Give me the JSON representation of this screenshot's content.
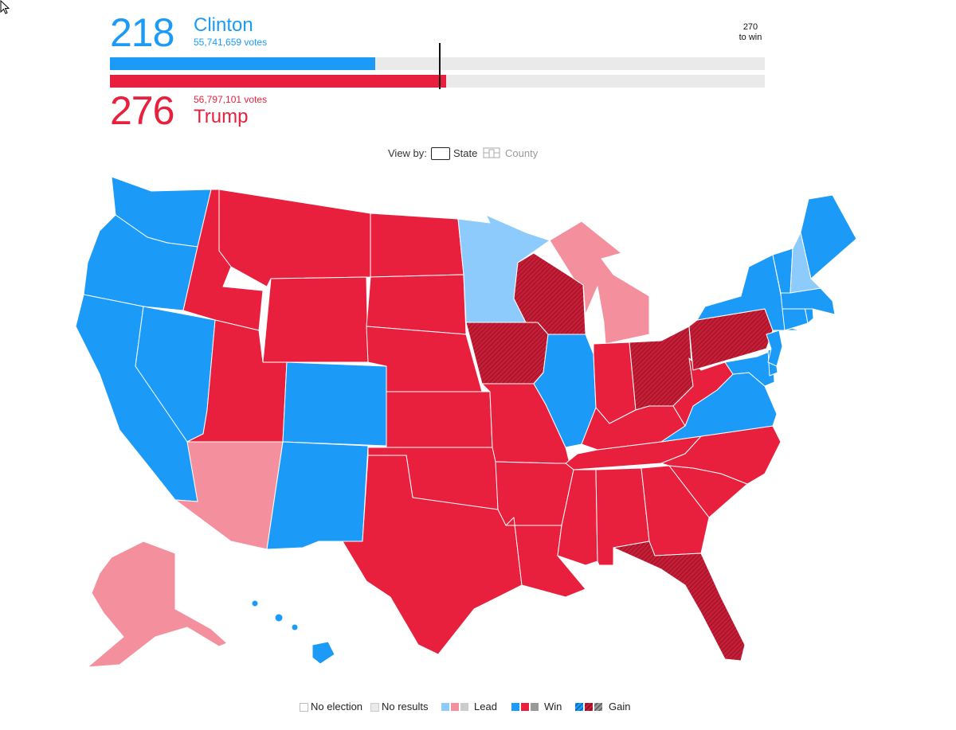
{
  "scoreboard": {
    "dem": {
      "count": "218",
      "name": "Clinton",
      "votes": "55,741,659 votes"
    },
    "rep": {
      "count": "276",
      "name": "Trump",
      "votes": "56,797,101 votes"
    },
    "threshold_line1": "270",
    "threshold_line2": "to win",
    "total_electoral": 538,
    "threshold": 270
  },
  "viewby": {
    "label": "View by:",
    "state": "State",
    "county": "County",
    "selected": "State"
  },
  "legend": {
    "no_election": "No election",
    "no_results": "No results",
    "lead": "Lead",
    "win": "Win",
    "gain": "Gain"
  },
  "colors": {
    "dem_win": "#1b9bf7",
    "rep_win": "#e8203d",
    "dem_lead": "#8ccbfb",
    "rep_lead": "#f4909d",
    "rep_gain": "#b81a33",
    "no_results": "#eaeaea",
    "other_lead": "#cccccc",
    "other_win": "#999999"
  },
  "states": {
    "WA": "dem_win",
    "OR": "dem_win",
    "CA": "dem_win",
    "NV": "dem_win",
    "CO": "dem_win",
    "NM": "dem_win",
    "MN": "dem_lead",
    "IL": "dem_win",
    "VA": "dem_win",
    "NY": "dem_win",
    "NJ": "dem_win",
    "MD": "dem_win",
    "DE": "dem_win",
    "CT": "dem_win",
    "RI": "dem_win",
    "MA": "dem_win",
    "VT": "dem_win",
    "ME": "dem_win",
    "NH": "dem_lead",
    "HI": "dem_win",
    "DC": "dem_win",
    "ID": "rep_win",
    "MT": "rep_win",
    "WY": "rep_win",
    "UT": "rep_win",
    "ND": "rep_win",
    "SD": "rep_win",
    "NE": "rep_win",
    "KS": "rep_win",
    "OK": "rep_win",
    "TX": "rep_win",
    "MO": "rep_win",
    "AR": "rep_win",
    "LA": "rep_win",
    "MS": "rep_win",
    "AL": "rep_win",
    "GA": "rep_win",
    "SC": "rep_win",
    "NC": "rep_win",
    "TN": "rep_win",
    "KY": "rep_win",
    "IN": "rep_win",
    "WV": "rep_win",
    "AZ": "rep_lead",
    "MI": "rep_lead",
    "AK": "rep_lead",
    "WI": "rep_gain",
    "IA": "rep_gain",
    "OH": "rep_gain",
    "PA": "rep_gain",
    "FL": "rep_gain"
  }
}
